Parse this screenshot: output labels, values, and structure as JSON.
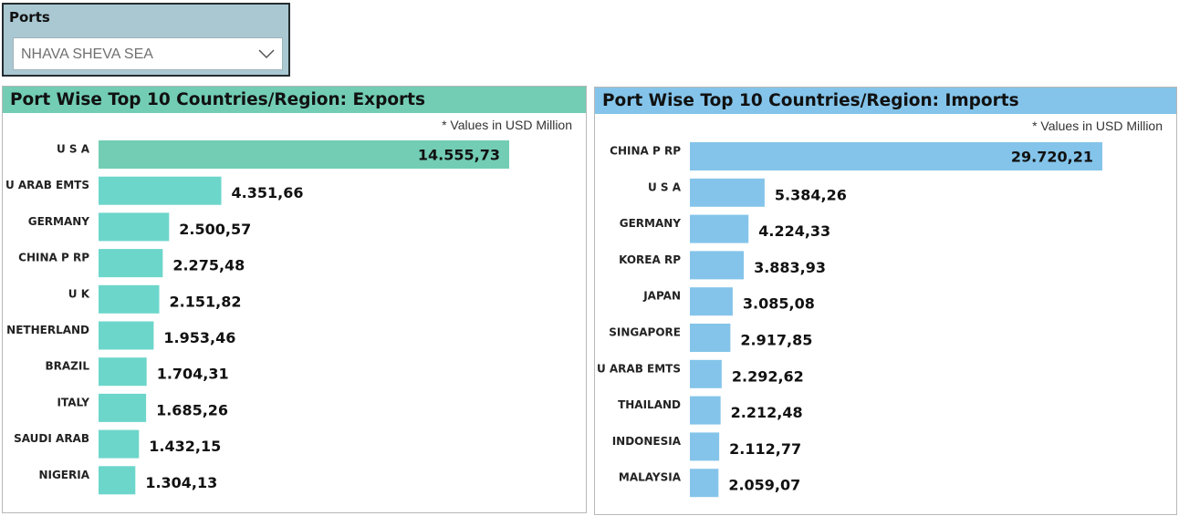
{
  "slicer": {
    "title": "Ports",
    "selected_value": "NHAVA SHEVA SEA"
  },
  "colors": {
    "slicer_bg": "#a9c8d2",
    "exports_header": "#72cdb4",
    "exports_bar": "#6dd6cb",
    "exports_bar_highlight": "#72cdb4",
    "imports_header": "#84c4ea",
    "imports_bar": "#84c4ea"
  },
  "chart_data": [
    {
      "type": "bar",
      "orientation": "horizontal",
      "title": "Port Wise Top 10 Countries/Region: Exports",
      "note": "* Values in USD Million",
      "categories": [
        "U S A",
        "U ARAB EMTS",
        "GERMANY",
        "CHINA P RP",
        "U K",
        "NETHERLAND",
        "BRAZIL",
        "ITALY",
        "SAUDI ARAB",
        "NIGERIA"
      ],
      "values": [
        14555.73,
        4351.66,
        2500.57,
        2275.48,
        2151.82,
        1953.46,
        1704.31,
        1685.26,
        1432.15,
        1304.13
      ],
      "value_labels": [
        "14.555,73",
        "4.351,66",
        "2.500,57",
        "2.275,48",
        "2.151,82",
        "1.953,46",
        "1.704,31",
        "1.685,26",
        "1.432,15",
        "1.304,13"
      ],
      "xlim": [
        0,
        14555.73
      ],
      "grid": false,
      "legend": "none"
    },
    {
      "type": "bar",
      "orientation": "horizontal",
      "title": "Port Wise Top 10 Countries/Region: Imports",
      "note": "* Values in USD Million",
      "categories": [
        "CHINA P RP",
        "U S A",
        "GERMANY",
        "KOREA RP",
        "JAPAN",
        "SINGAPORE",
        "U ARAB EMTS",
        "THAILAND",
        "INDONESIA",
        "MALAYSIA"
      ],
      "values": [
        29720.21,
        5384.26,
        4224.33,
        3883.93,
        3085.08,
        2917.85,
        2292.62,
        2212.48,
        2112.77,
        2059.07
      ],
      "value_labels": [
        "29.720,21",
        "5.384,26",
        "4.224,33",
        "3.883,93",
        "3.085,08",
        "2.917,85",
        "2.292,62",
        "2.212,48",
        "2.112,77",
        "2.059,07"
      ],
      "xlim": [
        0,
        29720.21
      ],
      "grid": false,
      "legend": "none"
    }
  ]
}
